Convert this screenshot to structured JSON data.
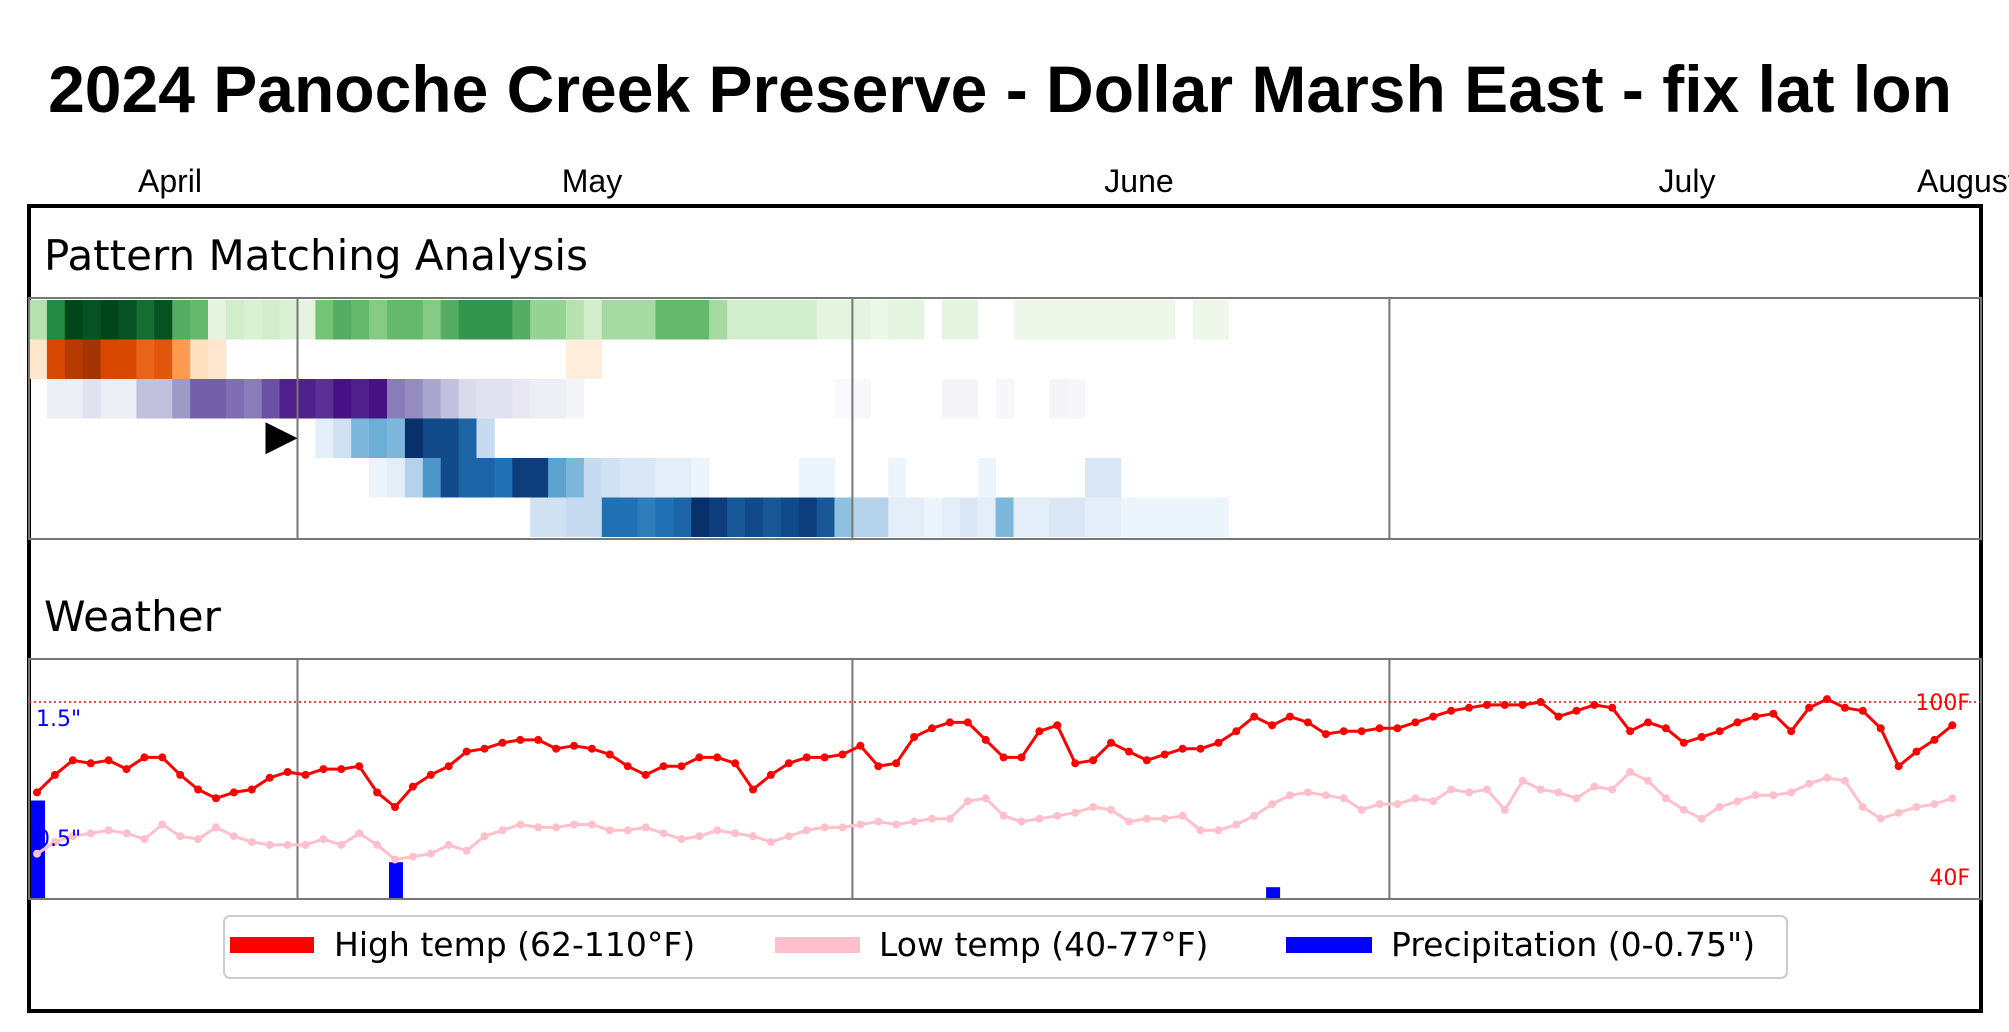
{
  "title": "2024 Panoche Creek Preserve - Dollar Marsh East - fix lat lon",
  "months": [
    "April",
    "May",
    "June",
    "July",
    "August"
  ],
  "panels": {
    "pattern": {
      "title": "Pattern Matching Analysis"
    },
    "weather": {
      "title": "Weather"
    }
  },
  "weather_labels": {
    "precip_top": "1.5\"",
    "precip_mid": "0.5\"",
    "temp_top": "100F",
    "temp_bottom": "40F"
  },
  "legend": [
    {
      "label": "High temp (62-110°F)",
      "color": "#ff0000"
    },
    {
      "label": "Low temp (40-77°F)",
      "color": "#ffc0cb"
    },
    {
      "label": "Precipitation (0-0.75\")",
      "color": "#0000ff"
    }
  ],
  "chart_data": [
    {
      "type": "heatmap",
      "title": "Pattern Matching Analysis",
      "x_start": "2024-03-24",
      "rows": [
        {
          "colormap": "greens",
          "start": "2024-03-24",
          "values": [
            0.3,
            0.75,
            1.0,
            0.95,
            1.0,
            0.95,
            0.85,
            0.95,
            0.6,
            0.55,
            0.1,
            0.2,
            0.15,
            0.2,
            0.15,
            0.1,
            0.5,
            0.6,
            0.55,
            0.45,
            0.55,
            0.55,
            0.45,
            0.6,
            0.7,
            0.7,
            0.7,
            0.6,
            0.4,
            0.4,
            0.3,
            0.2,
            0.35,
            0.35,
            0.35,
            0.55,
            0.55,
            0.55,
            0.35,
            0.2,
            0.2,
            0.2,
            0.2,
            0.2,
            0.1,
            0.1,
            0.1,
            0.05,
            0.1,
            0.1,
            0,
            0.1,
            0.1,
            0,
            0,
            0.05,
            0.05,
            0.05,
            0.05,
            0.05,
            0.05,
            0.05,
            0.05,
            0.05,
            0,
            0.05,
            0.05
          ]
        },
        {
          "colormap": "oranges",
          "start": "2024-03-24",
          "values": [
            0.1,
            0.75,
            0.85,
            0.9,
            0.75,
            0.75,
            0.65,
            0.7,
            0.45,
            0.15,
            0.1,
            0,
            0,
            0,
            0,
            0,
            0,
            0,
            0,
            0,
            0,
            0,
            0,
            0,
            0,
            0,
            0,
            0,
            0,
            0,
            0.05,
            0.05
          ]
        },
        {
          "colormap": "purples",
          "start": "2024-03-25",
          "values": [
            0.1,
            0.1,
            0.2,
            0.1,
            0.1,
            0.35,
            0.35,
            0.5,
            0.7,
            0.7,
            0.65,
            0.6,
            0.75,
            0.9,
            0.9,
            0.85,
            0.95,
            0.9,
            0.95,
            0.6,
            0.55,
            0.45,
            0.35,
            0.25,
            0.2,
            0.2,
            0.15,
            0.1,
            0.1,
            0.05,
            0,
            0,
            0,
            0,
            0,
            0,
            0,
            0,
            0,
            0,
            0,
            0,
            0,
            0,
            0.02,
            0.03,
            0,
            0,
            0,
            0,
            0.05,
            0.05,
            0,
            0.04,
            0,
            0,
            0.05,
            0.04
          ]
        },
        {
          "colormap": "blues",
          "start": "2024-04-09",
          "values": [
            0.1,
            0.2,
            0.45,
            0.5,
            0.45,
            1.0,
            0.9,
            0.9,
            0.8,
            0.25
          ]
        },
        {
          "colormap": "blues",
          "start": "2024-04-12",
          "values": [
            0.05,
            0.1,
            0.3,
            0.6,
            0.9,
            0.8,
            0.8,
            0.75,
            0.95,
            0.95,
            0.55,
            0.45,
            0.25,
            0.2,
            0.15,
            0.15,
            0.1,
            0.1,
            0.05,
            0,
            0,
            0,
            0,
            0,
            0.05,
            0.05,
            0,
            0,
            0,
            0.05,
            0,
            0,
            0,
            0,
            0.05,
            0,
            0,
            0,
            0,
            0,
            0.15,
            0.15
          ]
        },
        {
          "colormap": "blues",
          "start": "2024-04-21",
          "values": [
            0.2,
            0.2,
            0.25,
            0.25,
            0.75,
            0.75,
            0.7,
            0.75,
            0.8,
            1.0,
            0.95,
            0.85,
            0.9,
            0.85,
            0.9,
            0.95,
            0.85,
            0.4,
            0.3,
            0.3,
            0.1,
            0.1,
            0.05,
            0.1,
            0.15,
            0.1,
            0.45,
            0.1,
            0.1,
            0.15,
            0.15,
            0.1,
            0.1,
            0.05,
            0.05,
            0.05,
            0.05,
            0.05,
            0.05
          ]
        }
      ],
      "marker_date": "2024-04-08",
      "vlines": [
        "2024-04-08",
        "2024-05-09",
        "2024-06-08",
        "2024-08-08"
      ]
    },
    {
      "type": "line",
      "title": "Weather",
      "x_start": "2024-03-24",
      "series": [
        {
          "name": "High temp (62-110°F)",
          "color": "#ff0000",
          "values": [
            69,
            75,
            80,
            79,
            80,
            77,
            81,
            81,
            75,
            70,
            67,
            69,
            70,
            74,
            76,
            75,
            77,
            77,
            78,
            69,
            64,
            71,
            75,
            78,
            83,
            84,
            86,
            87,
            87,
            84,
            85,
            84,
            82,
            78,
            75,
            78,
            78,
            81,
            81,
            79,
            70,
            75,
            79,
            81,
            81,
            82,
            85,
            78,
            79,
            88,
            91,
            93,
            93,
            87,
            81,
            81,
            90,
            92,
            79,
            80,
            86,
            83,
            80,
            82,
            84,
            84,
            86,
            90,
            95,
            92,
            95,
            93,
            89,
            90,
            90,
            91,
            91,
            93,
            95,
            97,
            98,
            99,
            99,
            99,
            100,
            95,
            97,
            99,
            98,
            90,
            93,
            91,
            86,
            88,
            90,
            93,
            95,
            96,
            90,
            98,
            101,
            98,
            97,
            91,
            78,
            83,
            87,
            92
          ]
        },
        {
          "name": "Low temp (40-77°F)",
          "color": "#ffc0cb",
          "values": [
            48,
            52,
            54,
            55,
            56,
            55,
            53,
            58,
            54,
            53,
            57,
            54,
            52,
            51,
            51,
            51,
            53,
            51,
            55,
            51,
            46,
            47,
            48,
            51,
            49,
            54,
            56,
            58,
            57,
            57,
            58,
            58,
            56,
            56,
            57,
            55,
            53,
            54,
            56,
            55,
            54,
            52,
            54,
            56,
            57,
            57,
            58,
            59,
            58,
            59,
            60,
            60,
            66,
            67,
            61,
            59,
            60,
            61,
            62,
            64,
            63,
            59,
            60,
            60,
            61,
            56,
            56,
            58,
            61,
            65,
            68,
            69,
            68,
            67,
            63,
            65,
            65,
            67,
            66,
            70,
            69,
            70,
            63,
            73,
            70,
            69,
            67,
            71,
            70,
            76,
            73,
            67,
            63,
            60,
            64,
            66,
            68,
            68,
            69,
            72,
            74,
            73,
            64,
            60,
            62,
            64,
            65,
            67
          ]
        },
        {
          "name": "Precipitation (0-0.75\")",
          "color": "#0000ff",
          "type": "bar",
          "values": {
            "2024-03-24": 0.75,
            "2024-04-13": 0.28,
            "2024-06-01": 0.09
          }
        }
      ],
      "temp_range": [
        40,
        100
      ],
      "precip_range": [
        0,
        1.5
      ],
      "vlines": [
        "2024-04-08",
        "2024-05-09",
        "2024-06-08",
        "2024-08-08"
      ]
    }
  ]
}
